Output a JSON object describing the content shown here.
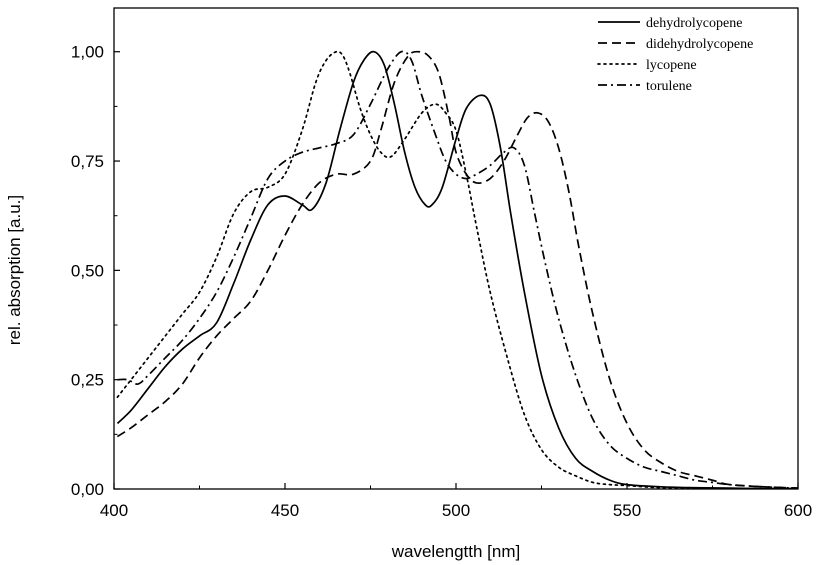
{
  "chart_data": {
    "type": "line",
    "xlabel": "wavelengtth [nm]",
    "ylabel": "rel. absorption [a.u.]",
    "xlim": [
      400,
      600
    ],
    "ylim": [
      0,
      1.1
    ],
    "x_ticks": [
      400,
      450,
      500,
      550,
      600
    ],
    "x_tick_labels": [
      "400",
      "450",
      "500",
      "550",
      "600"
    ],
    "y_ticks": [
      0,
      0.25,
      0.5,
      0.75,
      1.0
    ],
    "y_tick_labels": [
      "0,00",
      "0,25",
      "0,50",
      "0,75",
      "1,00"
    ],
    "grid": false,
    "legend_position": "top-right",
    "series": [
      {
        "name": "dehydrolycopene",
        "style": "solid",
        "x": [
          401,
          405,
          410,
          415,
          420,
          425,
          430,
          435,
          440,
          445,
          450,
          455,
          458,
          462,
          466,
          470,
          473,
          476,
          479,
          482,
          485,
          488,
          491,
          493,
          496,
          500,
          503,
          507,
          510,
          513,
          516,
          520,
          525,
          530,
          535,
          540,
          545,
          550,
          560,
          570,
          580,
          590,
          600
        ],
        "values": [
          0.15,
          0.18,
          0.23,
          0.28,
          0.32,
          0.35,
          0.38,
          0.47,
          0.57,
          0.65,
          0.67,
          0.65,
          0.64,
          0.7,
          0.82,
          0.93,
          0.98,
          1.0,
          0.97,
          0.88,
          0.77,
          0.69,
          0.65,
          0.65,
          0.69,
          0.8,
          0.87,
          0.9,
          0.88,
          0.78,
          0.63,
          0.45,
          0.26,
          0.14,
          0.07,
          0.04,
          0.02,
          0.01,
          0.005,
          0.003,
          0.002,
          0.001,
          0.001
        ]
      },
      {
        "name": "didehydrolycopene",
        "style": "dashed",
        "x": [
          401,
          405,
          410,
          415,
          420,
          425,
          430,
          435,
          440,
          445,
          450,
          455,
          460,
          465,
          470,
          475,
          478,
          482,
          486,
          489,
          492,
          495,
          498,
          500,
          503,
          506,
          510,
          514,
          518,
          521,
          524,
          527,
          530,
          533,
          536,
          540,
          545,
          550,
          555,
          560,
          565,
          570,
          575,
          580,
          590,
          600
        ],
        "values": [
          0.12,
          0.14,
          0.17,
          0.2,
          0.24,
          0.3,
          0.35,
          0.39,
          0.43,
          0.5,
          0.58,
          0.65,
          0.7,
          0.72,
          0.72,
          0.75,
          0.82,
          0.93,
          0.99,
          1.0,
          0.99,
          0.95,
          0.85,
          0.77,
          0.72,
          0.7,
          0.71,
          0.75,
          0.81,
          0.85,
          0.86,
          0.84,
          0.78,
          0.68,
          0.55,
          0.4,
          0.25,
          0.15,
          0.09,
          0.06,
          0.04,
          0.03,
          0.02,
          0.01,
          0.005,
          0.002
        ]
      },
      {
        "name": "lycopene",
        "style": "dotted",
        "x": [
          401,
          405,
          410,
          415,
          420,
          425,
          430,
          435,
          440,
          445,
          450,
          455,
          459,
          462,
          465,
          467,
          469,
          472,
          475,
          478,
          481,
          485,
          490,
          494,
          497,
          500,
          503,
          506,
          510,
          515,
          520,
          525,
          530,
          535,
          540,
          545,
          550,
          555,
          560,
          570,
          580,
          600
        ],
        "values": [
          0.21,
          0.25,
          0.3,
          0.35,
          0.4,
          0.45,
          0.53,
          0.63,
          0.68,
          0.69,
          0.72,
          0.82,
          0.93,
          0.98,
          1.0,
          0.99,
          0.95,
          0.87,
          0.81,
          0.77,
          0.76,
          0.8,
          0.86,
          0.88,
          0.86,
          0.82,
          0.72,
          0.6,
          0.45,
          0.3,
          0.17,
          0.09,
          0.05,
          0.03,
          0.015,
          0.01,
          0.008,
          0.005,
          0.003,
          0.002,
          0.001,
          0.001
        ]
      },
      {
        "name": "torulene",
        "style": "dash-dot",
        "x": [
          401,
          404,
          407,
          410,
          415,
          420,
          425,
          430,
          435,
          440,
          445,
          450,
          455,
          460,
          465,
          470,
          475,
          480,
          484,
          487,
          490,
          494,
          497,
          500,
          503,
          506,
          510,
          514,
          517,
          520,
          523,
          526,
          530,
          535,
          540,
          545,
          550,
          555,
          560,
          565,
          570,
          575,
          580,
          590,
          600
        ],
        "values": [
          0.25,
          0.25,
          0.24,
          0.26,
          0.3,
          0.34,
          0.39,
          0.45,
          0.53,
          0.62,
          0.71,
          0.75,
          0.77,
          0.78,
          0.79,
          0.81,
          0.88,
          0.96,
          1.0,
          0.98,
          0.9,
          0.81,
          0.75,
          0.72,
          0.71,
          0.72,
          0.74,
          0.77,
          0.78,
          0.74,
          0.63,
          0.52,
          0.39,
          0.26,
          0.16,
          0.1,
          0.07,
          0.05,
          0.04,
          0.03,
          0.02,
          0.015,
          0.01,
          0.005,
          0.002
        ]
      }
    ]
  }
}
